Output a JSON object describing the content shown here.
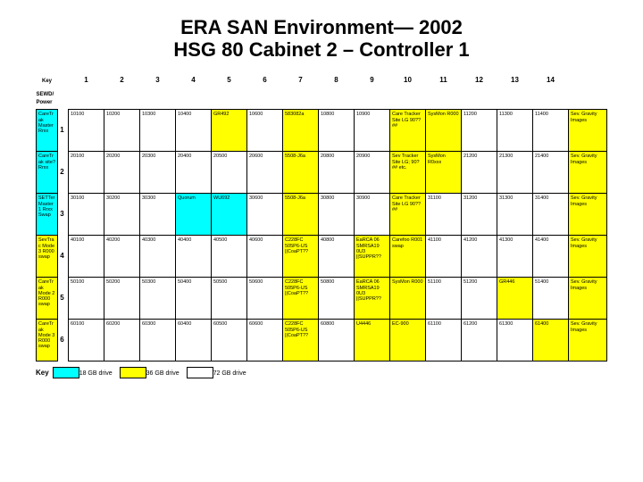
{
  "title": {
    "line1": "ERA SAN Environment— 2002",
    "line2": "HSG 80 Cabinet 2 – Controller 1",
    "fontsize": 22
  },
  "colors": {
    "cyan": "#00ffff",
    "yellow": "#ffff00",
    "white": "#ffffff",
    "border": "#000000",
    "text": "#000000",
    "background": "#ffffff"
  },
  "columns": {
    "corner1": "Key",
    "corner2": "SEWD/\nPower",
    "numbers": [
      "1",
      "2",
      "3",
      "4",
      "5",
      "6",
      "7",
      "8",
      "9",
      "10",
      "11",
      "12",
      "13",
      "14"
    ]
  },
  "row_labels": [
    "1",
    "2",
    "3",
    "4",
    "5",
    "6"
  ],
  "cells": [
    [
      {
        "t": "CareTrak Master Rrxx",
        "c": "cyan"
      },
      {
        "t": "10100",
        "c": "white"
      },
      {
        "t": "10200",
        "c": "white"
      },
      {
        "t": "10300",
        "c": "white"
      },
      {
        "t": "10400",
        "c": "white"
      },
      {
        "t": "GR492",
        "c": "yellow"
      },
      {
        "t": "10600",
        "c": "white"
      },
      {
        "t": "583082a",
        "c": "yellow"
      },
      {
        "t": "10800",
        "c": "white"
      },
      {
        "t": "10900",
        "c": "white"
      },
      {
        "t": "Care Tracker Site LG 90??##",
        "c": "yellow"
      },
      {
        "t": "SysMon R000",
        "c": "yellow"
      },
      {
        "t": "11200",
        "c": "white"
      },
      {
        "t": "11300",
        "c": "white"
      },
      {
        "t": "11400",
        "c": "white"
      },
      {
        "t": "Sev. Gravity Images",
        "c": "yellow"
      }
    ],
    [
      {
        "t": "CareTrak site? Rrxx",
        "c": "cyan"
      },
      {
        "t": "20100",
        "c": "white"
      },
      {
        "t": "20200",
        "c": "white"
      },
      {
        "t": "20300",
        "c": "white"
      },
      {
        "t": "20400",
        "c": "white"
      },
      {
        "t": "20500",
        "c": "white"
      },
      {
        "t": "20600",
        "c": "white"
      },
      {
        "t": "5508-J6a",
        "c": "yellow"
      },
      {
        "t": "20800",
        "c": "white"
      },
      {
        "t": "20900",
        "c": "white"
      },
      {
        "t": "Sev Tracker Site LG; 90?## etc.",
        "c": "yellow"
      },
      {
        "t": "SysMon R0xxx",
        "c": "yellow"
      },
      {
        "t": "21200",
        "c": "white"
      },
      {
        "t": "21300",
        "c": "white"
      },
      {
        "t": "21400",
        "c": "white"
      },
      {
        "t": "Sev. Gravity Images",
        "c": "yellow"
      }
    ],
    [
      {
        "t": "SETTer Master 1 Rrxx Swap",
        "c": "cyan"
      },
      {
        "t": "30100",
        "c": "white"
      },
      {
        "t": "30200",
        "c": "white"
      },
      {
        "t": "30300",
        "c": "white"
      },
      {
        "t": "Quorum",
        "c": "cyan"
      },
      {
        "t": "WU692",
        "c": "cyan"
      },
      {
        "t": "30600",
        "c": "white"
      },
      {
        "t": "5508-J6a",
        "c": "yellow"
      },
      {
        "t": "30800",
        "c": "white"
      },
      {
        "t": "30900",
        "c": "white"
      },
      {
        "t": "Care Tracker Site LG 90??##",
        "c": "yellow"
      },
      {
        "t": "31100",
        "c": "white"
      },
      {
        "t": "31200",
        "c": "white"
      },
      {
        "t": "31300",
        "c": "white"
      },
      {
        "t": "31400",
        "c": "white"
      },
      {
        "t": "Sev. Gravity Images",
        "c": "yellow"
      }
    ],
    [
      {
        "t": "SevTrac Mode 3 R000 swap",
        "c": "yellow"
      },
      {
        "t": "40100",
        "c": "white"
      },
      {
        "t": "40200",
        "c": "white"
      },
      {
        "t": "40300",
        "c": "white"
      },
      {
        "t": "40400",
        "c": "white"
      },
      {
        "t": "40500",
        "c": "white"
      },
      {
        "t": "40600",
        "c": "white"
      },
      {
        "t": "C228FC 505P6-US ||CoaPT??",
        "c": "yellow"
      },
      {
        "t": "40800",
        "c": "white"
      },
      {
        "t": "EaRCA 06 SMRSA19 0U3 ||SUPPR??",
        "c": "yellow"
      },
      {
        "t": "Carefoo R001 swap",
        "c": "yellow"
      },
      {
        "t": "41100",
        "c": "white"
      },
      {
        "t": "41200",
        "c": "white"
      },
      {
        "t": "41300",
        "c": "white"
      },
      {
        "t": "41400",
        "c": "white"
      },
      {
        "t": "Sev. Gravity Images",
        "c": "yellow"
      }
    ],
    [
      {
        "t": "CareTrak Mode 2 R000 swap",
        "c": "yellow"
      },
      {
        "t": "50100",
        "c": "white"
      },
      {
        "t": "50200",
        "c": "white"
      },
      {
        "t": "50300",
        "c": "white"
      },
      {
        "t": "50400",
        "c": "white"
      },
      {
        "t": "50500",
        "c": "white"
      },
      {
        "t": "50600",
        "c": "white"
      },
      {
        "t": "C228FC 505P6-US ||CoaPT??",
        "c": "yellow"
      },
      {
        "t": "50800",
        "c": "white"
      },
      {
        "t": "EaRCA 06 SMRSA19 0U3 ||SUPPR??",
        "c": "yellow"
      },
      {
        "t": "SysMon R000",
        "c": "yellow"
      },
      {
        "t": "51100",
        "c": "white"
      },
      {
        "t": "51200",
        "c": "white"
      },
      {
        "t": "GR446",
        "c": "yellow"
      },
      {
        "t": "51400",
        "c": "white"
      },
      {
        "t": "Sev. Gravity Images",
        "c": "yellow"
      }
    ],
    [
      {
        "t": "CareTrak Mode 3 R000 swap",
        "c": "yellow"
      },
      {
        "t": "60100",
        "c": "white"
      },
      {
        "t": "60200",
        "c": "white"
      },
      {
        "t": "60300",
        "c": "white"
      },
      {
        "t": "60400",
        "c": "white"
      },
      {
        "t": "60500",
        "c": "white"
      },
      {
        "t": "60600",
        "c": "white"
      },
      {
        "t": "C228FC 505P6-US ||CoaPT??",
        "c": "yellow"
      },
      {
        "t": "60800",
        "c": "white"
      },
      {
        "t": "U4446",
        "c": "yellow"
      },
      {
        "t": "EC-900",
        "c": "yellow"
      },
      {
        "t": "61100",
        "c": "white"
      },
      {
        "t": "61200",
        "c": "white"
      },
      {
        "t": "61300",
        "c": "white"
      },
      {
        "t": "61400",
        "c": "yellow"
      },
      {
        "t": "Sev. Gravity Images",
        "c": "yellow"
      }
    ]
  ],
  "key": {
    "label": "Key",
    "items": [
      {
        "color": "cyan",
        "label": "18 GB drive"
      },
      {
        "color": "yellow",
        "label": "36 GB drive"
      },
      {
        "color": "white",
        "label": "72 GB drive"
      }
    ]
  }
}
